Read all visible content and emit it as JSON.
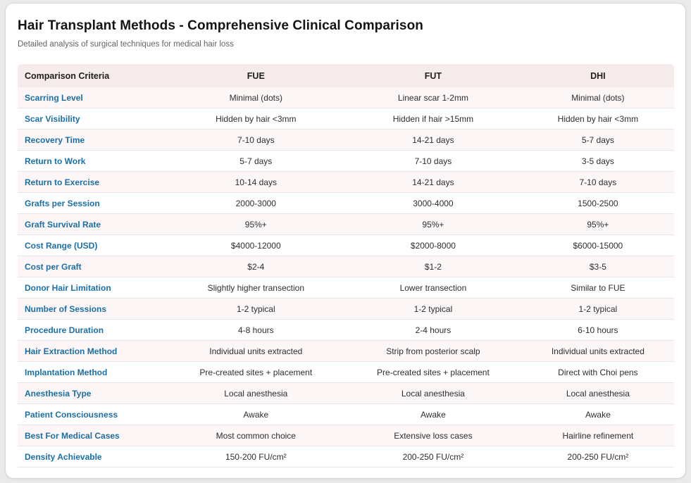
{
  "page": {
    "title": "Hair Transplant Methods - Comprehensive Clinical Comparison",
    "subtitle": "Detailed analysis of surgical techniques for medical hair loss"
  },
  "table": {
    "columns": [
      "Comparison Criteria",
      "FUE",
      "FUT",
      "DHI"
    ],
    "rows": [
      {
        "criteria": "Scarring Level",
        "fue": "Minimal (dots)",
        "fut": "Linear scar 1-2mm",
        "dhi": "Minimal (dots)"
      },
      {
        "criteria": "Scar Visibility",
        "fue": "Hidden by hair <3mm",
        "fut": "Hidden if hair >15mm",
        "dhi": "Hidden by hair <3mm"
      },
      {
        "criteria": "Recovery Time",
        "fue": "7-10 days",
        "fut": "14-21 days",
        "dhi": "5-7 days"
      },
      {
        "criteria": "Return to Work",
        "fue": "5-7 days",
        "fut": "7-10 days",
        "dhi": "3-5 days"
      },
      {
        "criteria": "Return to Exercise",
        "fue": "10-14 days",
        "fut": "14-21 days",
        "dhi": "7-10 days"
      },
      {
        "criteria": "Grafts per Session",
        "fue": "2000-3000",
        "fut": "3000-4000",
        "dhi": "1500-2500"
      },
      {
        "criteria": "Graft Survival Rate",
        "fue": "95%+",
        "fut": "95%+",
        "dhi": "95%+"
      },
      {
        "criteria": "Cost Range (USD)",
        "fue": "$4000-12000",
        "fut": "$2000-8000",
        "dhi": "$6000-15000"
      },
      {
        "criteria": "Cost per Graft",
        "fue": "$2-4",
        "fut": "$1-2",
        "dhi": "$3-5"
      },
      {
        "criteria": "Donor Hair Limitation",
        "fue": "Slightly higher transection",
        "fut": "Lower transection",
        "dhi": "Similar to FUE"
      },
      {
        "criteria": "Number of Sessions",
        "fue": "1-2 typical",
        "fut": "1-2 typical",
        "dhi": "1-2 typical"
      },
      {
        "criteria": "Procedure Duration",
        "fue": "4-8 hours",
        "fut": "2-4 hours",
        "dhi": "6-10 hours"
      },
      {
        "criteria": "Hair Extraction Method",
        "fue": "Individual units extracted",
        "fut": "Strip from posterior scalp",
        "dhi": "Individual units extracted"
      },
      {
        "criteria": "Implantation Method",
        "fue": "Pre-created sites + placement",
        "fut": "Pre-created sites + placement",
        "dhi": "Direct with Choi pens"
      },
      {
        "criteria": "Anesthesia Type",
        "fue": "Local anesthesia",
        "fut": "Local anesthesia",
        "dhi": "Local anesthesia"
      },
      {
        "criteria": "Patient Consciousness",
        "fue": "Awake",
        "fut": "Awake",
        "dhi": "Awake"
      },
      {
        "criteria": "Best For Medical Cases",
        "fue": "Most common choice",
        "fut": "Extensive loss cases",
        "dhi": "Hairline refinement"
      },
      {
        "criteria": "Density Achievable",
        "fue": "150-200 FU/cm²",
        "fut": "200-250 FU/cm²",
        "dhi": "200-250 FU/cm²"
      }
    ]
  },
  "colors": {
    "accent_blue": "#1a6fa8",
    "header_bg": "#f6ebeb",
    "alt_row_bg": "#fdf6f6",
    "row_border": "#ece4e4",
    "card_bg": "#ffffff",
    "page_bg": "#eaeaea"
  }
}
